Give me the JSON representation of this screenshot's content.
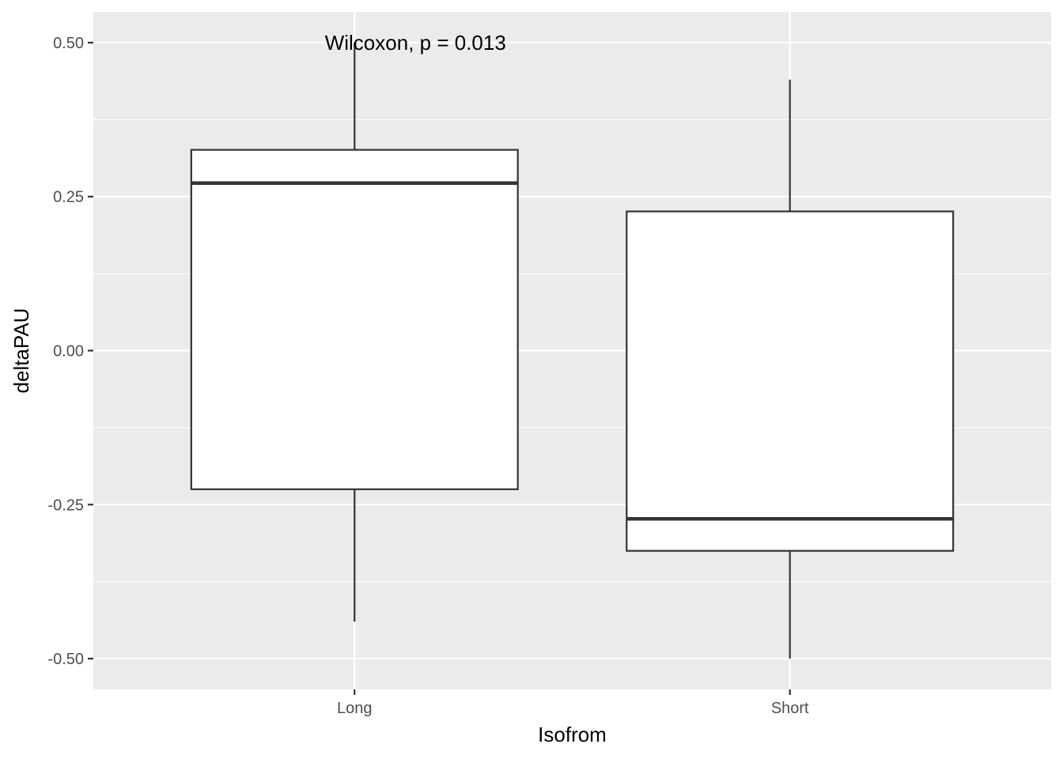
{
  "chart_data": {
    "type": "boxplot",
    "title": "",
    "xlabel": "Isofrom",
    "ylabel": "deltaPAU",
    "ylim": [
      -0.55,
      0.55
    ],
    "yticks": [
      -0.5,
      -0.25,
      0.0,
      0.25,
      0.5
    ],
    "ytick_labels": [
      "-0.50",
      "-0.25",
      "0.00",
      "0.25",
      "0.50"
    ],
    "grid": true,
    "categories": [
      "Long",
      "Short"
    ],
    "boxes": [
      {
        "category": "Long",
        "whisker_low": -0.44,
        "q1": -0.225,
        "median": 0.272,
        "q3": 0.326,
        "whisker_high": 0.5
      },
      {
        "category": "Short",
        "whisker_low": -0.5,
        "q1": -0.325,
        "median": -0.273,
        "q3": 0.226,
        "whisker_high": 0.44
      }
    ],
    "annotation": {
      "text": "Wilcoxon, p = 0.013",
      "x_category": "Long",
      "y": 0.5
    }
  },
  "colors": {
    "panel_bg": "#ebebeb",
    "grid": "#ffffff",
    "box_fill": "#ffffff",
    "box_stroke": "#333333"
  }
}
